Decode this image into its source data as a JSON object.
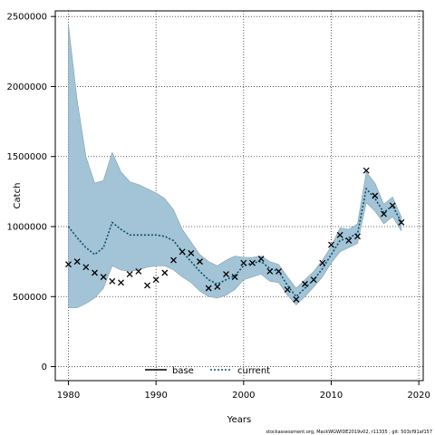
{
  "chart_data": {
    "type": "line",
    "xlabel": "Years",
    "ylabel": "Catch",
    "xlim": [
      1978.5,
      2020.5
    ],
    "ylim": [
      -100000,
      2540000
    ],
    "x_ticks": [
      1980,
      1990,
      2000,
      2010,
      2020
    ],
    "y_ticks": [
      0,
      500000,
      1000000,
      1500000,
      2000000,
      2500000
    ],
    "y_tick_labels": [
      "0",
      "500000",
      "1000000",
      "1500000",
      "2000000",
      "2500000"
    ],
    "x_tick_labels": [
      "1980",
      "1990",
      "2000",
      "2010",
      "2020"
    ],
    "grid": true,
    "legend_position": "bottom-center",
    "legend": [
      {
        "label": "base",
        "style": "solid",
        "color": "#000000"
      },
      {
        "label": "current",
        "style": "dotted",
        "color": "#0b4f6c"
      }
    ],
    "band_color": "#a3c4d6",
    "years": [
      1980,
      1981,
      1982,
      1983,
      1984,
      1985,
      1986,
      1987,
      1988,
      1989,
      1990,
      1991,
      1992,
      1993,
      1994,
      1995,
      1996,
      1997,
      1998,
      1999,
      2000,
      2001,
      2002,
      2003,
      2004,
      2005,
      2006,
      2007,
      2008,
      2009,
      2010,
      2011,
      2012,
      2013,
      2014,
      2015,
      2016,
      2017,
      2018
    ],
    "current": [
      1000000,
      920000,
      850000,
      800000,
      850000,
      1030000,
      980000,
      940000,
      940000,
      940000,
      940000,
      930000,
      900000,
      820000,
      750000,
      680000,
      620000,
      590000,
      620000,
      650000,
      720000,
      740000,
      750000,
      700000,
      680000,
      580000,
      500000,
      560000,
      620000,
      700000,
      800000,
      900000,
      920000,
      950000,
      1270000,
      1200000,
      1100000,
      1150000,
      1030000
    ],
    "band_upper": [
      2440000,
      1900000,
      1500000,
      1310000,
      1330000,
      1530000,
      1390000,
      1320000,
      1300000,
      1270000,
      1240000,
      1200000,
      1120000,
      980000,
      890000,
      800000,
      750000,
      720000,
      760000,
      790000,
      780000,
      780000,
      790000,
      750000,
      730000,
      640000,
      560000,
      620000,
      680000,
      760000,
      860000,
      990000,
      980000,
      1020000,
      1390000,
      1310000,
      1160000,
      1210000,
      1070000
    ],
    "band_lower": [
      420000,
      420000,
      450000,
      490000,
      560000,
      720000,
      690000,
      680000,
      690000,
      710000,
      720000,
      720000,
      690000,
      640000,
      600000,
      540000,
      500000,
      490000,
      510000,
      550000,
      620000,
      640000,
      660000,
      610000,
      600000,
      510000,
      440000,
      500000,
      570000,
      640000,
      740000,
      820000,
      850000,
      880000,
      1170000,
      1110000,
      1020000,
      1070000,
      970000
    ],
    "observed": [
      [
        1980,
        730000
      ],
      [
        1981,
        750000
      ],
      [
        1982,
        710000
      ],
      [
        1983,
        670000
      ],
      [
        1984,
        640000
      ],
      [
        1985,
        610000
      ],
      [
        1986,
        600000
      ],
      [
        1987,
        660000
      ],
      [
        1988,
        680000
      ],
      [
        1989,
        580000
      ],
      [
        1990,
        620000
      ],
      [
        1991,
        670000
      ],
      [
        1992,
        760000
      ],
      [
        1993,
        820000
      ],
      [
        1994,
        810000
      ],
      [
        1995,
        750000
      ],
      [
        1996,
        560000
      ],
      [
        1997,
        570000
      ],
      [
        1998,
        660000
      ],
      [
        1999,
        640000
      ],
      [
        2000,
        740000
      ],
      [
        2001,
        740000
      ],
      [
        2002,
        770000
      ],
      [
        2003,
        680000
      ],
      [
        2004,
        680000
      ],
      [
        2005,
        550000
      ],
      [
        2006,
        480000
      ],
      [
        2007,
        590000
      ],
      [
        2008,
        620000
      ],
      [
        2009,
        740000
      ],
      [
        2010,
        870000
      ],
      [
        2011,
        940000
      ],
      [
        2012,
        900000
      ],
      [
        2013,
        930000
      ],
      [
        2014,
        1400000
      ],
      [
        2015,
        1220000
      ],
      [
        2016,
        1090000
      ],
      [
        2017,
        1150000
      ],
      [
        2018,
        1030000
      ]
    ]
  },
  "footer": "stockassessment.org, MackWGWIDE2019v02, r11335 , git: 503cf91af157"
}
